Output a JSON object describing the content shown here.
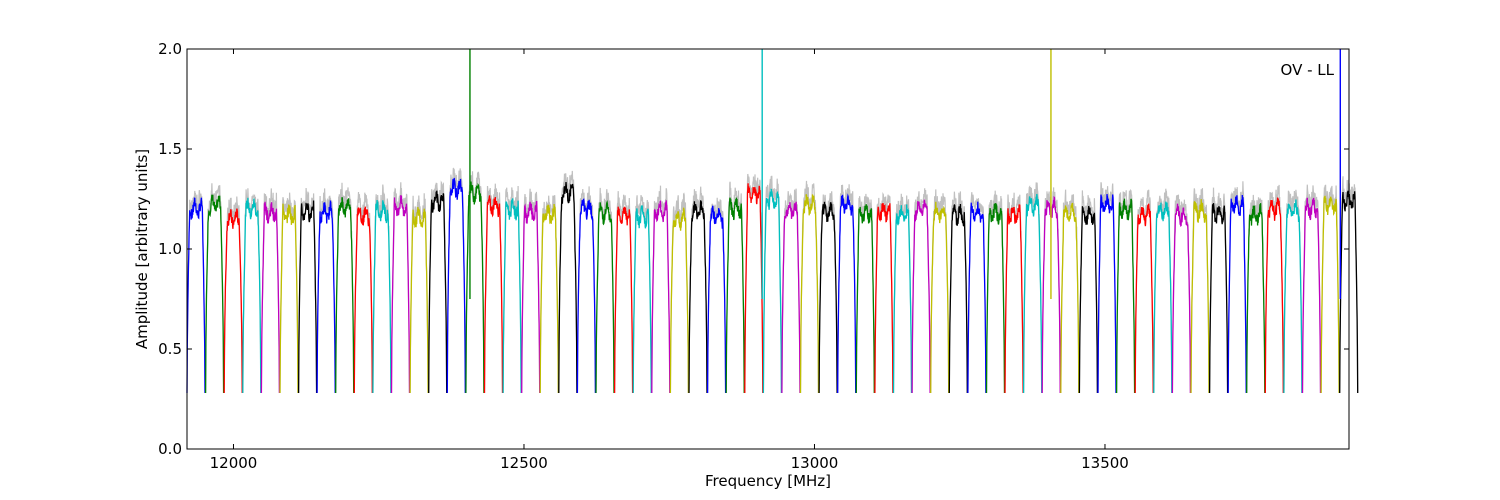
{
  "chart_data": {
    "type": "line",
    "title": "",
    "xlabel": "Frequency [MHz]",
    "ylabel": "Amplitude [arbitrary units]",
    "annotation": "OV - LL",
    "xlim": [
      11920,
      13920
    ],
    "ylim": [
      0.0,
      2.0
    ],
    "xticks": [
      12000,
      12500,
      13000,
      13500
    ],
    "yticks": [
      0.0,
      0.5,
      1.0,
      1.5,
      2.0
    ],
    "xtick_labels": [
      "12000",
      "12500",
      "13000",
      "13500"
    ],
    "ytick_labels": [
      "0.0",
      "0.5",
      "1.0",
      "1.5",
      "2.0"
    ],
    "grid": false,
    "legend": "none",
    "background_trace_color": "#c0c0c0",
    "color_cycle": [
      "#0000ff",
      "#008000",
      "#ff0000",
      "#00bfbf",
      "#bf00bf",
      "#bfbf00",
      "#000000"
    ],
    "channel_spacing_mhz": 32,
    "channel_width_mhz": 31,
    "first_channel_start_mhz": 11920,
    "channels": [
      {
        "level": 1.2
      },
      {
        "level": 1.22
      },
      {
        "level": 1.15
      },
      {
        "level": 1.2
      },
      {
        "level": 1.18
      },
      {
        "level": 1.17
      },
      {
        "level": 1.19
      },
      {
        "level": 1.18
      },
      {
        "level": 1.21
      },
      {
        "level": 1.17
      },
      {
        "level": 1.19
      },
      {
        "level": 1.21
      },
      {
        "level": 1.16
      },
      {
        "level": 1.24
      },
      {
        "level": 1.3
      },
      {
        "level": 1.28
      },
      {
        "level": 1.22
      },
      {
        "level": 1.2
      },
      {
        "level": 1.18
      },
      {
        "level": 1.17
      },
      {
        "level": 1.28
      },
      {
        "level": 1.2
      },
      {
        "level": 1.18
      },
      {
        "level": 1.17
      },
      {
        "level": 1.16
      },
      {
        "level": 1.19
      },
      {
        "level": 1.15
      },
      {
        "level": 1.19
      },
      {
        "level": 1.16
      },
      {
        "level": 1.2
      },
      {
        "level": 1.28
      },
      {
        "level": 1.25
      },
      {
        "level": 1.19
      },
      {
        "level": 1.22
      },
      {
        "level": 1.18
      },
      {
        "level": 1.22
      },
      {
        "level": 1.18
      },
      {
        "level": 1.19
      },
      {
        "level": 1.17
      },
      {
        "level": 1.2
      },
      {
        "level": 1.18
      },
      {
        "level": 1.17
      },
      {
        "level": 1.18
      },
      {
        "level": 1.18
      },
      {
        "level": 1.17
      },
      {
        "level": 1.22
      },
      {
        "level": 1.2
      },
      {
        "level": 1.18
      },
      {
        "level": 1.17
      },
      {
        "level": 1.22
      },
      {
        "level": 1.2
      },
      {
        "level": 1.17
      },
      {
        "level": 1.19
      },
      {
        "level": 1.17
      },
      {
        "level": 1.19
      },
      {
        "level": 1.18
      },
      {
        "level": 1.22
      },
      {
        "level": 1.17
      },
      {
        "level": 1.2
      },
      {
        "level": 1.19
      },
      {
        "level": 1.2
      },
      {
        "level": 1.22
      },
      {
        "level": 1.24
      }
    ],
    "dip_min": 0.28,
    "spikes": [
      {
        "x": 12407,
        "y_top": 2.0,
        "color": "#008000"
      },
      {
        "x": 12910,
        "y_top": 2.0,
        "color": "#00bfbf"
      },
      {
        "x": 13407,
        "y_top": 2.0,
        "color": "#bfbf00"
      },
      {
        "x": 13905,
        "y_top": 2.0,
        "color": "#0000ff"
      }
    ]
  }
}
